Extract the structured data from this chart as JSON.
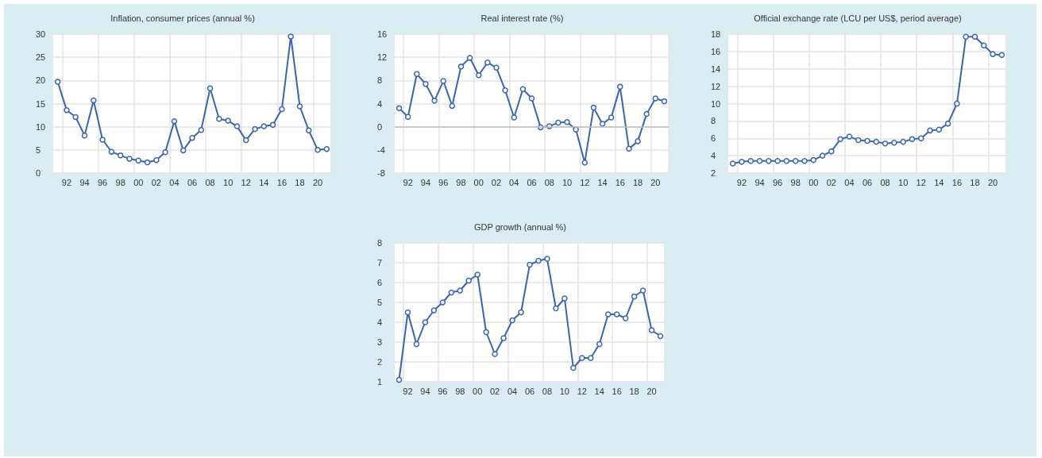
{
  "chart_data": [
    {
      "type": "line",
      "title": "Inflation, consumer prices (annual %)",
      "categories": [
        null,
        "92",
        null,
        "94",
        null,
        "96",
        null,
        "98",
        null,
        "00",
        null,
        "02",
        null,
        "04",
        null,
        "06",
        null,
        "08",
        null,
        "10",
        null,
        "12",
        null,
        "14",
        null,
        "16",
        null,
        "18",
        null,
        "20",
        null
      ],
      "values": [
        19.7,
        13.6,
        12.1,
        8.1,
        15.7,
        7.2,
        4.6,
        3.8,
        3.1,
        2.7,
        2.3,
        2.8,
        4.5,
        11.2,
        4.9,
        7.6,
        9.3,
        18.3,
        11.7,
        11.3,
        10.1,
        7.1,
        9.5,
        10.1,
        10.4,
        13.8,
        29.5,
        14.4,
        9.2,
        5.0,
        5.2
      ],
      "color": "#3a64b0",
      "ylim": [
        0,
        30
      ],
      "yticks": [
        0,
        5,
        10,
        15,
        20,
        25,
        30
      ],
      "grid": true,
      "marker": "circle"
    },
    {
      "type": "line",
      "title": "Real interest rate (%)",
      "categories": [
        null,
        "92",
        null,
        "94",
        null,
        "96",
        null,
        "98",
        null,
        "00",
        null,
        "02",
        null,
        "04",
        null,
        "06",
        null,
        "08",
        null,
        "10",
        null,
        "12",
        null,
        "14",
        null,
        "16",
        null,
        "18",
        null,
        "20",
        null
      ],
      "values": [
        3.2,
        1.7,
        9.1,
        7.4,
        4.5,
        7.9,
        3.6,
        10.4,
        11.9,
        8.9,
        11.1,
        10.2,
        6.3,
        1.6,
        6.5,
        4.9,
        -0.1,
        0.1,
        0.7,
        0.8,
        -0.5,
        -6.2,
        3.3,
        0.5,
        1.6,
        6.9,
        -3.8,
        -2.5,
        2.2,
        4.9,
        4.4
      ],
      "color": "#3a64b0",
      "ylim": [
        -8,
        16
      ],
      "yticks": [
        -8,
        -4,
        0,
        4,
        8,
        12,
        16
      ],
      "grid": true,
      "marker": "circle",
      "ref_lines": [
        {
          "axis": "y",
          "value": 0,
          "color": "#bfbfbf"
        }
      ]
    },
    {
      "type": "line",
      "title": "Official exchange rate (LCU per US$, period average)",
      "categories": [
        null,
        "92",
        null,
        "94",
        null,
        "96",
        null,
        "98",
        null,
        "00",
        null,
        "02",
        null,
        "04",
        null,
        "06",
        null,
        "08",
        null,
        "10",
        null,
        "12",
        null,
        "14",
        null,
        "16",
        null,
        "18",
        null,
        "20",
        null
      ],
      "values": [
        3.1,
        3.3,
        3.4,
        3.4,
        3.4,
        3.4,
        3.4,
        3.4,
        3.4,
        3.5,
        4.0,
        4.5,
        5.9,
        6.2,
        5.8,
        5.7,
        5.6,
        5.4,
        5.5,
        5.6,
        5.9,
        6.0,
        6.9,
        7.0,
        7.7,
        10.0,
        17.7,
        17.7,
        16.7,
        15.7,
        15.6
      ],
      "color": "#3a64b0",
      "ylim": [
        2,
        18
      ],
      "yticks": [
        2,
        4,
        6,
        8,
        10,
        12,
        14,
        16,
        18
      ],
      "grid": true,
      "marker": "circle"
    },
    {
      "type": "line",
      "title": "GDP growth (annual %)",
      "categories": [
        null,
        "92",
        null,
        "94",
        null,
        "96",
        null,
        "98",
        null,
        "00",
        null,
        "02",
        null,
        "04",
        null,
        "06",
        null,
        "08",
        null,
        "10",
        null,
        "12",
        null,
        "14",
        null,
        "16",
        null,
        "18",
        null,
        "20",
        null
      ],
      "values": [
        1.1,
        4.5,
        2.9,
        4.0,
        4.6,
        5.0,
        5.5,
        5.6,
        6.1,
        6.4,
        3.5,
        2.4,
        3.2,
        4.1,
        4.5,
        6.9,
        7.1,
        7.2,
        4.7,
        5.2,
        1.7,
        2.2,
        2.2,
        2.9,
        4.4,
        4.4,
        4.2,
        5.3,
        5.6,
        3.6,
        3.3
      ],
      "color": "#3a64b0",
      "ylim": [
        1,
        8
      ],
      "yticks": [
        1,
        2,
        3,
        4,
        5,
        6,
        7,
        8
      ],
      "grid": true,
      "marker": "circle"
    }
  ]
}
